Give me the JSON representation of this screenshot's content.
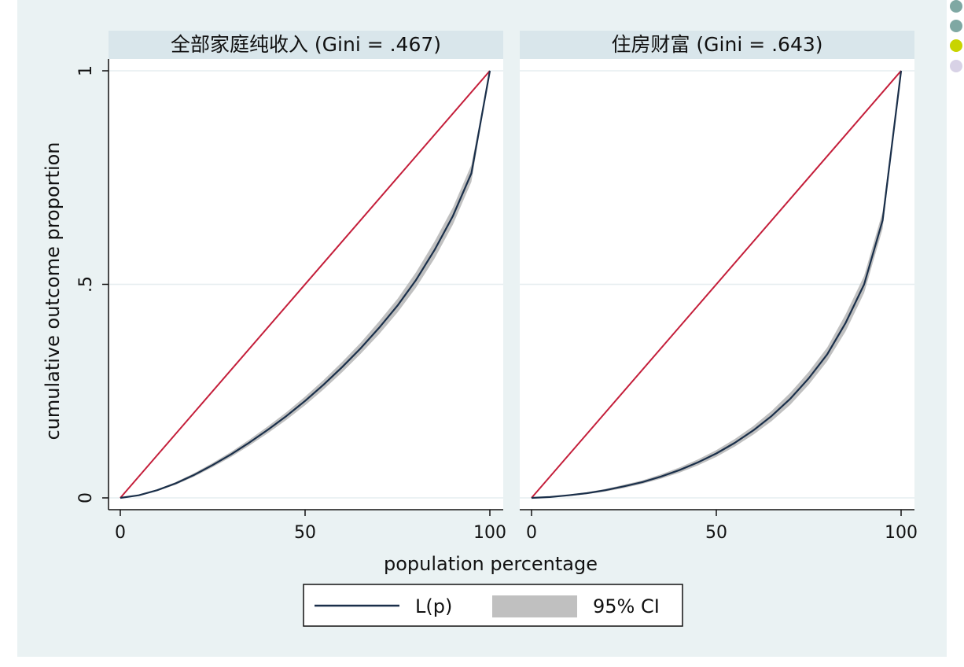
{
  "chart_data": [
    {
      "type": "line",
      "title": "全部家庭纯收入 (Gini = .467)",
      "xlabel": "population percentage",
      "ylabel": "cumulative outcome proportion",
      "xlim": [
        0,
        100
      ],
      "ylim": [
        0,
        1
      ],
      "xticks": [
        "0",
        "50",
        "100"
      ],
      "yticks": [
        "0",
        ".5",
        "1"
      ],
      "grid": true,
      "series": [
        {
          "name": "L(p)",
          "x": [
            0,
            5,
            10,
            15,
            20,
            25,
            30,
            35,
            40,
            45,
            50,
            55,
            60,
            65,
            70,
            75,
            80,
            85,
            90,
            95,
            100
          ],
          "values": [
            0,
            0.006,
            0.018,
            0.034,
            0.054,
            0.077,
            0.102,
            0.13,
            0.16,
            0.192,
            0.227,
            0.265,
            0.306,
            0.35,
            0.398,
            0.45,
            0.51,
            0.58,
            0.66,
            0.76,
            1.0
          ]
        },
        {
          "name": "95% CI",
          "x": [
            0,
            5,
            10,
            15,
            20,
            25,
            30,
            35,
            40,
            45,
            50,
            55,
            60,
            65,
            70,
            75,
            80,
            85,
            90,
            95,
            100
          ],
          "lower": [
            0,
            0.005,
            0.016,
            0.031,
            0.05,
            0.072,
            0.096,
            0.123,
            0.152,
            0.183,
            0.217,
            0.254,
            0.294,
            0.337,
            0.383,
            0.434,
            0.492,
            0.56,
            0.64,
            0.74,
            1.0
          ],
          "upper": [
            0,
            0.007,
            0.02,
            0.037,
            0.058,
            0.082,
            0.108,
            0.137,
            0.168,
            0.201,
            0.237,
            0.276,
            0.318,
            0.363,
            0.413,
            0.466,
            0.528,
            0.6,
            0.68,
            0.78,
            1.0
          ]
        },
        {
          "name": "equality",
          "x": [
            0,
            100
          ],
          "values": [
            0,
            1
          ]
        }
      ]
    },
    {
      "type": "line",
      "title": "住房财富 (Gini = .643)",
      "xlabel": "population percentage",
      "ylabel": "cumulative outcome proportion",
      "xlim": [
        0,
        100
      ],
      "ylim": [
        0,
        1
      ],
      "xticks": [
        "0",
        "50",
        "100"
      ],
      "yticks": [
        "0",
        ".5",
        "1"
      ],
      "grid": true,
      "series": [
        {
          "name": "L(p)",
          "x": [
            0,
            5,
            10,
            15,
            20,
            25,
            30,
            35,
            40,
            45,
            50,
            55,
            60,
            65,
            70,
            75,
            80,
            85,
            90,
            95,
            100
          ],
          "values": [
            0,
            0.002,
            0.006,
            0.011,
            0.018,
            0.027,
            0.037,
            0.05,
            0.065,
            0.083,
            0.104,
            0.129,
            0.158,
            0.192,
            0.232,
            0.28,
            0.336,
            0.41,
            0.5,
            0.65,
            1.0
          ]
        },
        {
          "name": "95% CI",
          "x": [
            0,
            5,
            10,
            15,
            20,
            25,
            30,
            35,
            40,
            45,
            50,
            55,
            60,
            65,
            70,
            75,
            80,
            85,
            90,
            95,
            100
          ],
          "lower": [
            0,
            0.001,
            0.004,
            0.009,
            0.015,
            0.023,
            0.033,
            0.045,
            0.059,
            0.076,
            0.096,
            0.12,
            0.148,
            0.18,
            0.218,
            0.265,
            0.32,
            0.39,
            0.48,
            0.63,
            1.0
          ],
          "upper": [
            0,
            0.003,
            0.008,
            0.013,
            0.021,
            0.031,
            0.041,
            0.055,
            0.071,
            0.09,
            0.112,
            0.138,
            0.168,
            0.204,
            0.246,
            0.295,
            0.352,
            0.43,
            0.52,
            0.67,
            1.0
          ]
        },
        {
          "name": "equality",
          "x": [
            0,
            100
          ],
          "values": [
            0,
            1
          ]
        }
      ]
    }
  ],
  "legend": {
    "placement": "bottom",
    "items": [
      {
        "label": "L(p)",
        "swatch": "line",
        "color": "#1a2f4a"
      },
      {
        "label": "95% CI",
        "swatch": "area",
        "color": "#c0c0c0"
      }
    ]
  },
  "colors": {
    "background": "#eaf2f3",
    "panel": "#ffffff",
    "strip": "#d9e6eb",
    "lorenz": "#1a2f4a",
    "equality": "#c41e3a",
    "ci": "#c0c0c0",
    "grid": "#e6eef0"
  },
  "decor": {
    "dots": [
      "#7fa8a3",
      "#7fa8a3",
      "#c8d400",
      "#d8d2e6"
    ]
  }
}
